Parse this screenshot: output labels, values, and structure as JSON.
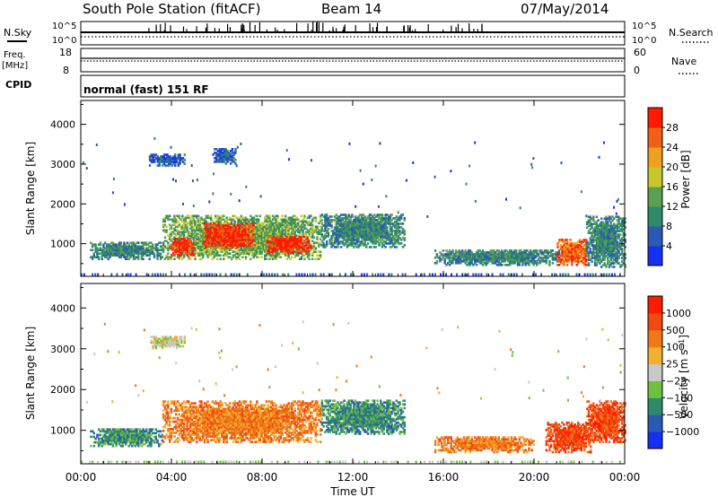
{
  "header": {
    "station": "South Pole Station (fitACF)",
    "beam": "Beam 14",
    "date": "07/May/2014"
  },
  "params": {
    "nsky_label": "N.Sky",
    "nsearch_label": "N.Search",
    "freq_label_top": "Freq.",
    "freq_label_unit": "[MHz]",
    "freq_ticks": [
      "18",
      "8"
    ],
    "nave_label": "Nave",
    "nave_ticks": [
      "60",
      "0"
    ],
    "noise_ticks": [
      "10^5",
      "10^0"
    ],
    "cpid_label": "CPID",
    "cpid_value": "normal (fast) 151 RF"
  },
  "chart_data": [
    {
      "type": "heatmap",
      "name": "power",
      "ylabel": "Slant Range [km]",
      "ylim": [
        180,
        4600
      ],
      "yticks": [
        1000,
        2000,
        3000,
        4000
      ],
      "xlim": [
        0,
        24
      ],
      "colorbar": {
        "label": "Power [dB]",
        "range": [
          0,
          32
        ],
        "ticks": [
          4,
          8,
          12,
          16,
          20,
          24,
          28
        ],
        "colors": [
          "#1530f0",
          "#2a5ab4",
          "#2f8a6a",
          "#5aa050",
          "#c8c82a",
          "#f0a020",
          "#f06018",
          "#ff1a00"
        ]
      },
      "regions": [
        {
          "t0": 0.4,
          "t1": 3.6,
          "r0": 600,
          "r1": 1050,
          "v": 6
        },
        {
          "t0": 3.6,
          "t1": 10.6,
          "r0": 600,
          "r1": 1700,
          "v": 10
        },
        {
          "t0": 3.9,
          "t1": 5.0,
          "r0": 700,
          "r1": 1150,
          "v": 27
        },
        {
          "t0": 5.4,
          "t1": 7.6,
          "r0": 900,
          "r1": 1500,
          "v": 26
        },
        {
          "t0": 8.2,
          "t1": 10.1,
          "r0": 750,
          "r1": 1200,
          "v": 27
        },
        {
          "t0": 10.6,
          "t1": 14.3,
          "r0": 900,
          "r1": 1750,
          "v": 6
        },
        {
          "t0": 15.6,
          "t1": 21.3,
          "r0": 450,
          "r1": 850,
          "v": 9
        },
        {
          "t0": 21.0,
          "t1": 22.3,
          "r0": 450,
          "r1": 1100,
          "v": 24
        },
        {
          "t0": 22.3,
          "t1": 24.0,
          "r0": 400,
          "r1": 1700,
          "v": 9
        },
        {
          "t0": 3.0,
          "t1": 4.6,
          "r0": 2950,
          "r1": 3250,
          "v": 5
        },
        {
          "t0": 5.8,
          "t1": 6.8,
          "r0": 3000,
          "r1": 3400,
          "v": 5
        }
      ]
    },
    {
      "type": "heatmap",
      "name": "velocity",
      "ylabel": "Slant Range [km]",
      "xlabel": "Time UT",
      "ylim": [
        180,
        4600
      ],
      "yticks": [
        1000,
        2000,
        3000,
        4000
      ],
      "xlim": [
        0,
        24
      ],
      "xticks": [
        "00:00",
        "04:00",
        "08:00",
        "12:00",
        "16:00",
        "20:00",
        "00:00"
      ],
      "colorbar": {
        "label": "Velocity [m s^-1]",
        "ticks": [
          "1000",
          "500",
          "100",
          "25",
          "−25",
          "−100",
          "−500",
          "−1000"
        ],
        "colors": [
          "#1530f0",
          "#2a5ab4",
          "#2f8a6a",
          "#70c040",
          "#c8c8c8",
          "#f0b030",
          "#f07818",
          "#f04a10",
          "#ff1a00"
        ]
      },
      "regions": [
        {
          "t0": 0.4,
          "t1": 3.6,
          "r0": 600,
          "r1": 1050,
          "v": 2
        },
        {
          "t0": 3.6,
          "t1": 10.6,
          "r0": 700,
          "r1": 1700,
          "v": 6
        },
        {
          "t0": 10.6,
          "t1": 14.3,
          "r0": 900,
          "r1": 1750,
          "v": 2
        },
        {
          "t0": 15.6,
          "t1": 20.0,
          "r0": 450,
          "r1": 850,
          "v": 6
        },
        {
          "t0": 20.5,
          "t1": 22.5,
          "r0": 450,
          "r1": 1200,
          "v": 7
        },
        {
          "t0": 22.3,
          "t1": 24.0,
          "r0": 700,
          "r1": 1700,
          "v": 7
        },
        {
          "t0": 3.0,
          "t1": 4.6,
          "r0": 3000,
          "r1": 3300,
          "v": 4
        }
      ]
    }
  ]
}
